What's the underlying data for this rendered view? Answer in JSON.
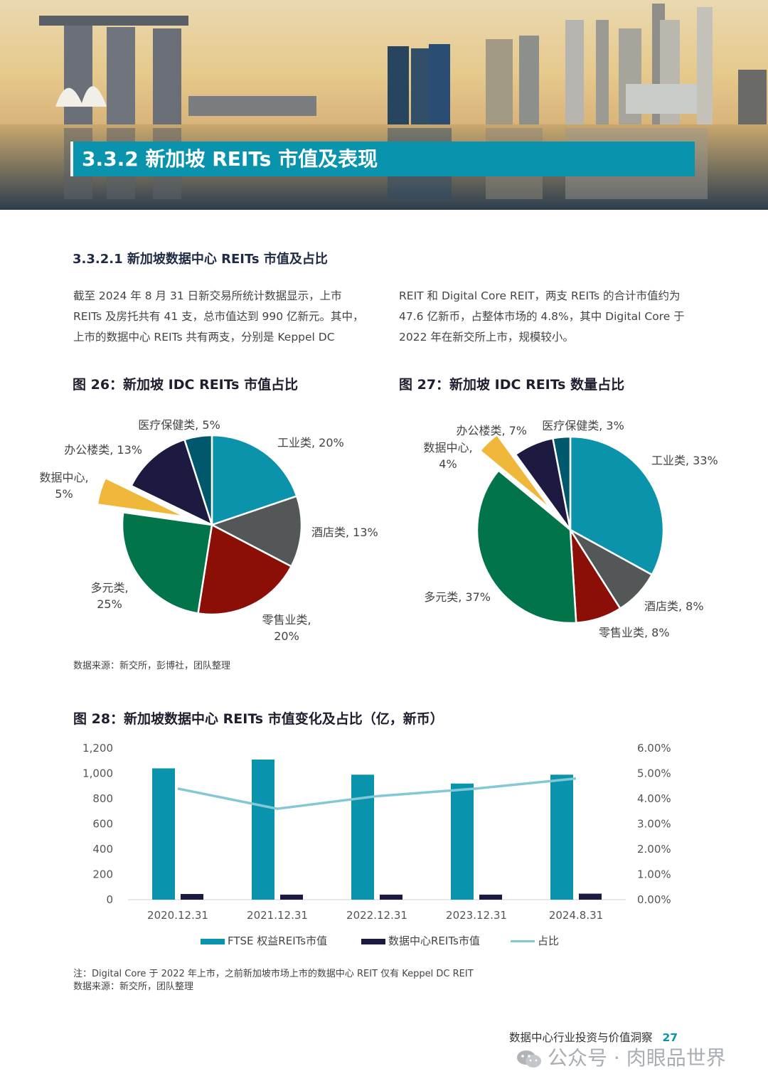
{
  "section": {
    "title": "3.3.2 新加坡 REITs 市值及表现"
  },
  "subsection": {
    "title": "3.3.2.1 新加坡数据中心 REITs 市值及占比"
  },
  "body": {
    "col_left": "截至 2024 年 8 月 31 日新交易所统计数据显示，上市 REITs 及房托共有 41 支，总市值达到 990 亿新元。其中，上市的数据中心 REITs 共有两支，分别是 Keppel DC",
    "col_right": "REIT 和 Digital Core REIT，两支 REITs 的合计市值约为 47.6 亿新币，占整体市场的 4.8%，其中 Digital Core 于 2022 年在新交所上市，规模较小。"
  },
  "fig26": {
    "title": "图 26：新加坡 IDC REITs 市值占比",
    "source": "数据来源：新交所，彭博社，团队整理"
  },
  "fig27": {
    "title": "图 27：新加坡 IDC REITs 数量占比"
  },
  "fig28": {
    "title": "图 28：新加坡数据中心 REITs 市值变化及占比（亿，新币）",
    "note": "注：Digital Core 于 2022 年上市，之前新加坡市场上市的数据中心 REIT 仅有 Keppel DC REIT",
    "source": "数据来源：新交所，团队整理"
  },
  "footer": {
    "text": "数据中心行业投资与价值洞察",
    "page": "27"
  },
  "watermark": {
    "text": "公众号 · 肉眼品世界"
  },
  "colors": {
    "teal": "#0a93ac",
    "navy": "#1c1a40",
    "line": "#84c8d6",
    "industrial": "#0b93ac",
    "hotel": "#545758",
    "retail": "#8b0f06",
    "diversified": "#017549",
    "datacenter": "#f0b83a",
    "office": "#1c1a40",
    "healthcare": "#00586d"
  },
  "chart_data": [
    {
      "id": "fig26",
      "type": "pie",
      "slices": [
        {
          "label": "工业类, 20%",
          "value": 20,
          "color": "#0b93ac"
        },
        {
          "label": "酒店类, 13%",
          "value": 13,
          "color": "#545758"
        },
        {
          "label": "零售业类, 20%",
          "value": 20,
          "color": "#8b0f06"
        },
        {
          "label": "多元类, 25%",
          "value": 25,
          "color": "#017549"
        },
        {
          "label": "数据中心, 5%",
          "value": 5,
          "color": "#f0b83a",
          "exploded": true
        },
        {
          "label": "办公楼类, 13%",
          "value": 13,
          "color": "#1c1a40"
        },
        {
          "label": "医疗保健类, 5%",
          "value": 5,
          "color": "#00586d"
        }
      ]
    },
    {
      "id": "fig27",
      "type": "pie",
      "slices": [
        {
          "label": "工业类, 33%",
          "value": 33,
          "color": "#0b93ac"
        },
        {
          "label": "酒店类, 8%",
          "value": 8,
          "color": "#545758"
        },
        {
          "label": "零售业类, 8%",
          "value": 8,
          "color": "#8b0f06"
        },
        {
          "label": "多元类, 37%",
          "value": 37,
          "color": "#017549"
        },
        {
          "label": "数据中心, 4%",
          "value": 4,
          "color": "#f0b83a",
          "exploded": true
        },
        {
          "label": "办公楼类, 7%",
          "value": 7,
          "color": "#1c1a40"
        },
        {
          "label": "医疗保健类, 3%",
          "value": 3,
          "color": "#00586d"
        }
      ]
    },
    {
      "id": "fig28",
      "type": "bar",
      "categories": [
        "2020.12.31",
        "2021.12.31",
        "2022.12.31",
        "2023.12.31",
        "2024.8.31"
      ],
      "series": [
        {
          "name": "FTSE 权益REITs市值",
          "type": "bar",
          "axis": "left",
          "values": [
            1040,
            1110,
            990,
            920,
            990
          ],
          "color": "#0a93ac"
        },
        {
          "name": "数据中心REITs市值",
          "type": "bar",
          "axis": "left",
          "values": [
            45,
            40,
            40,
            40,
            47.6
          ],
          "color": "#1c1a40"
        },
        {
          "name": "占比",
          "type": "line",
          "axis": "right",
          "values": [
            4.4,
            3.6,
            4.1,
            4.4,
            4.8
          ],
          "color": "#84c8d6"
        }
      ],
      "y_left": {
        "min": 0,
        "max": 1200,
        "ticks": [
          "0",
          "200",
          "400",
          "600",
          "800",
          "1,000",
          "1,200"
        ]
      },
      "y_right": {
        "min": 0,
        "max": 6,
        "ticks": [
          "0.00%",
          "1.00%",
          "2.00%",
          "3.00%",
          "4.00%",
          "5.00%",
          "6.00%"
        ]
      },
      "legend_position": "bottom"
    }
  ]
}
